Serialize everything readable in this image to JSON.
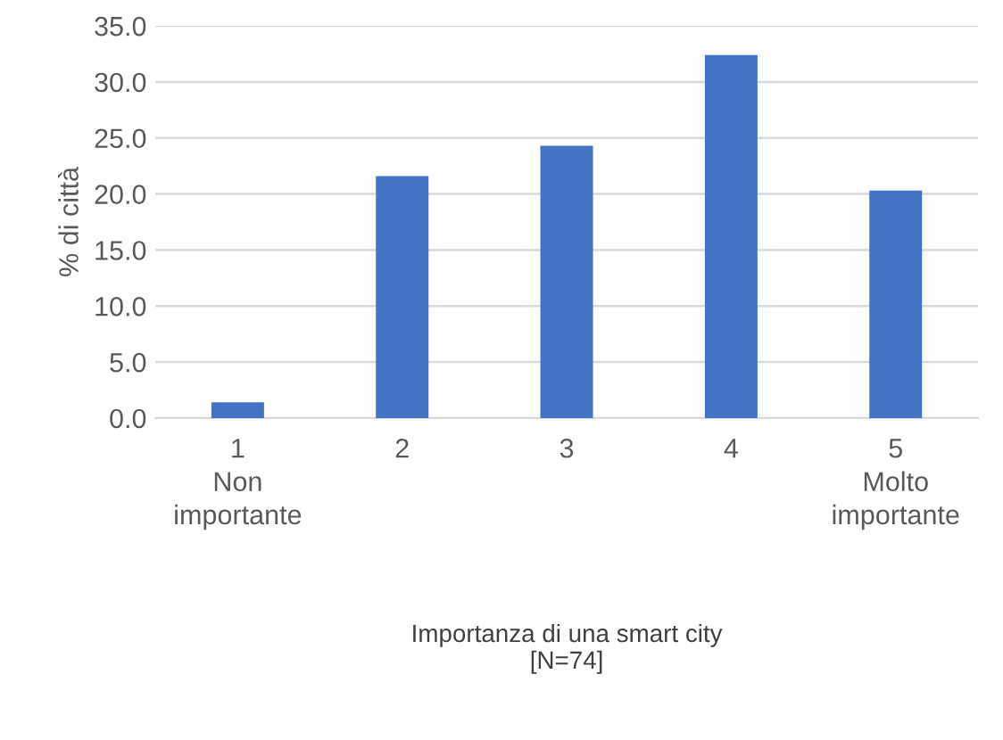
{
  "chart_data": {
    "type": "bar",
    "ylabel": "% di città",
    "xlabel": "Importanza di una smart city\n[N=74]",
    "categories": [
      "1\nNon\nimportante",
      "2",
      "3",
      "4",
      "5\nMolto\nimportante"
    ],
    "values": [
      1.4,
      21.6,
      24.3,
      32.4,
      20.3
    ],
    "color": "#4472c4",
    "ylim": [
      0,
      35
    ],
    "yticks": [
      {
        "value": 0,
        "label": "0.0"
      },
      {
        "value": 5,
        "label": "5.0"
      },
      {
        "value": 10,
        "label": "10.0"
      },
      {
        "value": 15,
        "label": "15.0"
      },
      {
        "value": 20,
        "label": "20.0"
      },
      {
        "value": 25,
        "label": "25.0"
      },
      {
        "value": 30,
        "label": "30.0"
      },
      {
        "value": 35,
        "label": "35.0"
      }
    ],
    "grid": "y"
  }
}
